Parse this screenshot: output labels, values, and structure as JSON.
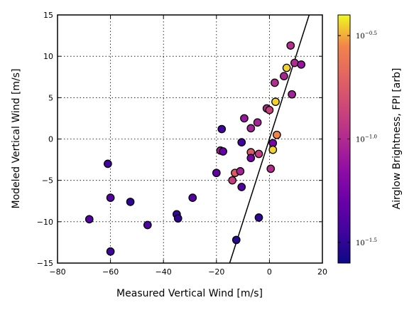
{
  "chart_data": {
    "type": "scatter",
    "xlabel": "Measured Vertical Wind [m/s]",
    "ylabel": "Modeled Vertical Wind [m/s]",
    "xlim": [
      -80,
      20
    ],
    "ylim": [
      -15,
      15
    ],
    "xticks": [
      -80,
      -60,
      -40,
      -20,
      0,
      20
    ],
    "yticks": [
      -15,
      -10,
      -5,
      0,
      5,
      10,
      15
    ],
    "xtick_labels": [
      "−80",
      "−60",
      "−40",
      "−20",
      "0",
      "20"
    ],
    "ytick_labels": [
      "−15",
      "−10",
      "−5",
      "0",
      "5",
      "10",
      "15"
    ],
    "grid": true,
    "colormap": "plasma",
    "colorbar": {
      "label": "Airglow Brightness, FPI [arb]",
      "scale": "log",
      "range_log10": [
        -1.6,
        -0.4
      ],
      "ticks": [
        {
          "base": "10",
          "exponent": "−1.5",
          "log10": -1.5
        },
        {
          "base": "10",
          "exponent": "−1.0",
          "log10": -1.0
        },
        {
          "base": "10",
          "exponent": "−0.5",
          "log10": -0.5
        }
      ]
    },
    "reference_line": {
      "slope": 1,
      "intercept": 0,
      "color": "#000000"
    },
    "points": [
      {
        "x": -68,
        "y": -9.7,
        "c": -1.38
      },
      {
        "x": -61,
        "y": -3.0,
        "c": -1.45
      },
      {
        "x": -60,
        "y": -7.1,
        "c": -1.38
      },
      {
        "x": -60,
        "y": -13.6,
        "c": -1.45
      },
      {
        "x": -52.5,
        "y": -7.6,
        "c": -1.5
      },
      {
        "x": -46,
        "y": -10.4,
        "c": -1.4
      },
      {
        "x": -35,
        "y": -9.1,
        "c": -1.48
      },
      {
        "x": -34.5,
        "y": -9.6,
        "c": -1.5
      },
      {
        "x": -29,
        "y": -7.1,
        "c": -1.38
      },
      {
        "x": -20,
        "y": -4.1,
        "c": -1.33
      },
      {
        "x": -18.5,
        "y": -1.4,
        "c": -1.05
      },
      {
        "x": -18,
        "y": 1.2,
        "c": -1.45
      },
      {
        "x": -17.5,
        "y": -1.5,
        "c": -1.3
      },
      {
        "x": -14,
        "y": -5.0,
        "c": -0.9
      },
      {
        "x": -13,
        "y": -4.1,
        "c": -0.75
      },
      {
        "x": -12.5,
        "y": -12.2,
        "c": -1.52
      },
      {
        "x": -11,
        "y": -3.9,
        "c": -1.05
      },
      {
        "x": -10.5,
        "y": -0.4,
        "c": -1.45
      },
      {
        "x": -10.5,
        "y": -5.8,
        "c": -1.38
      },
      {
        "x": -9.5,
        "y": 2.5,
        "c": -1.1
      },
      {
        "x": -7,
        "y": 1.3,
        "c": -1.05
      },
      {
        "x": -7,
        "y": -1.6,
        "c": -0.75
      },
      {
        "x": -7,
        "y": -2.3,
        "c": -1.25
      },
      {
        "x": -4.5,
        "y": 2.0,
        "c": -1.05
      },
      {
        "x": -4,
        "y": -1.8,
        "c": -0.9
      },
      {
        "x": -4,
        "y": -9.5,
        "c": -1.5
      },
      {
        "x": -1,
        "y": 3.7,
        "c": -1.0
      },
      {
        "x": 0,
        "y": 3.5,
        "c": -0.88
      },
      {
        "x": 0.5,
        "y": -3.6,
        "c": -1.0
      },
      {
        "x": 1.3,
        "y": -0.5,
        "c": -1.25
      },
      {
        "x": 1.3,
        "y": -1.3,
        "c": -0.45
      },
      {
        "x": 2,
        "y": 6.8,
        "c": -0.98
      },
      {
        "x": 2.3,
        "y": 4.5,
        "c": -0.45
      },
      {
        "x": 2.8,
        "y": 0.5,
        "c": -0.55
      },
      {
        "x": 5.5,
        "y": 7.6,
        "c": -1.02
      },
      {
        "x": 6.5,
        "y": 8.6,
        "c": -0.45
      },
      {
        "x": 8,
        "y": 11.3,
        "c": -0.98
      },
      {
        "x": 8.5,
        "y": 5.4,
        "c": -1.05
      },
      {
        "x": 9.5,
        "y": 9.2,
        "c": -1.0
      },
      {
        "x": 12,
        "y": 9.0,
        "c": -1.12
      }
    ]
  }
}
